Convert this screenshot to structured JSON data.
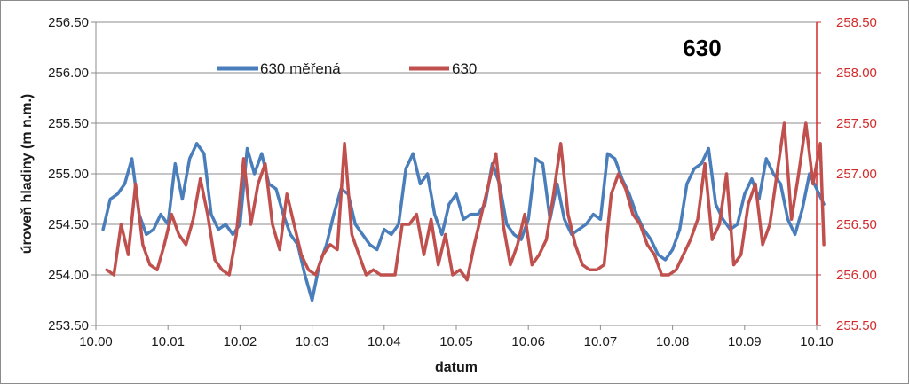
{
  "chart_data": {
    "type": "line",
    "title": "630",
    "xlabel": "datum",
    "ylabel": "úroveň hladiny (m n.m.)",
    "x_ticks": [
      "10.00",
      "10.01",
      "10.02",
      "10.03",
      "10.04",
      "10.05",
      "10.06",
      "10.07",
      "10.08",
      "10.09",
      "10.10"
    ],
    "xlim": [
      10.0,
      10.1
    ],
    "y_left": {
      "lim": [
        253.5,
        256.5
      ],
      "ticks": [
        "253.50",
        "254.00",
        "254.50",
        "255.00",
        "255.50",
        "256.00",
        "256.50"
      ]
    },
    "y_right": {
      "lim": [
        255.5,
        258.5
      ],
      "ticks": [
        "255.50",
        "256.00",
        "256.50",
        "257.00",
        "257.50",
        "258.00",
        "258.50"
      ],
      "color": "#d22b2b"
    },
    "grid": "horizontal",
    "legend_position": "top",
    "series": [
      {
        "name": "630 měřená",
        "axis": "left",
        "color": "#4a7ebb",
        "x": [
          10.001,
          10.002,
          10.003,
          10.004,
          10.005,
          10.006,
          10.007,
          10.008,
          10.009,
          10.01,
          10.011,
          10.012,
          10.013,
          10.014,
          10.015,
          10.016,
          10.017,
          10.018,
          10.019,
          10.02,
          10.021,
          10.022,
          10.023,
          10.024,
          10.025,
          10.026,
          10.027,
          10.028,
          10.029,
          10.03,
          10.031,
          10.032,
          10.033,
          10.034,
          10.035,
          10.036,
          10.037,
          10.038,
          10.039,
          10.04,
          10.041,
          10.042,
          10.043,
          10.044,
          10.045,
          10.046,
          10.047,
          10.048,
          10.049,
          10.05,
          10.051,
          10.052,
          10.053,
          10.054,
          10.055,
          10.056,
          10.057,
          10.058,
          10.059,
          10.06,
          10.061,
          10.062,
          10.063,
          10.064,
          10.065,
          10.066,
          10.067,
          10.068,
          10.069,
          10.07,
          10.071,
          10.072,
          10.073,
          10.074,
          10.075,
          10.076,
          10.077,
          10.078,
          10.079,
          10.08,
          10.081,
          10.082,
          10.083,
          10.084,
          10.085,
          10.086,
          10.087,
          10.088,
          10.089,
          10.09,
          10.091,
          10.092,
          10.093,
          10.094,
          10.095,
          10.096,
          10.097,
          10.098,
          10.099,
          10.1,
          10.101
        ],
        "values": [
          254.45,
          254.75,
          254.8,
          254.9,
          255.15,
          254.6,
          254.4,
          254.45,
          254.6,
          254.5,
          255.1,
          254.75,
          255.15,
          255.3,
          255.2,
          254.6,
          254.45,
          254.5,
          254.4,
          254.5,
          255.25,
          255.0,
          255.2,
          254.9,
          254.85,
          254.6,
          254.4,
          254.3,
          254.0,
          253.75,
          254.1,
          254.3,
          254.6,
          254.85,
          254.8,
          254.5,
          254.4,
          254.3,
          254.25,
          254.45,
          254.4,
          254.5,
          255.05,
          255.2,
          254.9,
          255.0,
          254.6,
          254.4,
          254.7,
          254.8,
          254.55,
          254.6,
          254.6,
          254.7,
          255.1,
          254.9,
          254.5,
          254.4,
          254.35,
          254.55,
          255.15,
          255.1,
          254.55,
          254.9,
          254.55,
          254.4,
          254.45,
          254.5,
          254.6,
          254.55,
          255.2,
          255.15,
          254.95,
          254.8,
          254.6,
          254.45,
          254.35,
          254.2,
          254.15,
          254.25,
          254.45,
          254.9,
          255.05,
          255.1,
          255.25,
          254.7,
          254.55,
          254.45,
          254.5,
          254.8,
          254.95,
          254.75,
          255.15,
          255.0,
          254.9,
          254.55,
          254.4,
          254.65,
          255.0,
          254.85,
          254.7
        ]
      },
      {
        "name": "630",
        "axis": "right",
        "color": "#c0504d",
        "x": [
          10.0015,
          10.0025,
          10.0035,
          10.0045,
          10.0055,
          10.0065,
          10.0075,
          10.0085,
          10.0095,
          10.0105,
          10.0115,
          10.0125,
          10.0135,
          10.0145,
          10.0155,
          10.0165,
          10.0175,
          10.0185,
          10.0195,
          10.0205,
          10.0215,
          10.0225,
          10.0235,
          10.0245,
          10.0255,
          10.0265,
          10.0275,
          10.0285,
          10.0295,
          10.0305,
          10.0315,
          10.0325,
          10.0335,
          10.0345,
          10.0355,
          10.0365,
          10.0375,
          10.0385,
          10.0395,
          10.0405,
          10.0415,
          10.0425,
          10.0435,
          10.0445,
          10.0455,
          10.0465,
          10.0475,
          10.0485,
          10.0495,
          10.0505,
          10.0515,
          10.0525,
          10.0535,
          10.0545,
          10.0555,
          10.0565,
          10.0575,
          10.0585,
          10.0595,
          10.0605,
          10.0615,
          10.0625,
          10.0635,
          10.0645,
          10.0655,
          10.0665,
          10.0675,
          10.0685,
          10.0695,
          10.0705,
          10.0715,
          10.0725,
          10.0735,
          10.0745,
          10.0755,
          10.0765,
          10.0775,
          10.0785,
          10.0795,
          10.0805,
          10.0815,
          10.0825,
          10.0835,
          10.0845,
          10.0855,
          10.0865,
          10.0875,
          10.0885,
          10.0895,
          10.0905,
          10.0915,
          10.0925,
          10.0935,
          10.0945,
          10.0955,
          10.0965,
          10.0975,
          10.0985,
          10.0995,
          10.1005,
          10.101
        ],
        "values": [
          256.05,
          256.0,
          256.5,
          256.2,
          256.9,
          256.3,
          256.1,
          256.05,
          256.3,
          256.6,
          256.4,
          256.3,
          256.55,
          256.95,
          256.6,
          256.15,
          256.05,
          256.0,
          256.4,
          257.15,
          256.5,
          256.9,
          257.1,
          256.5,
          256.25,
          256.8,
          256.5,
          256.2,
          256.05,
          256.0,
          256.2,
          256.3,
          256.25,
          257.3,
          256.4,
          256.2,
          256.0,
          256.05,
          256.0,
          256.0,
          256.0,
          256.5,
          256.5,
          256.6,
          256.2,
          256.55,
          256.1,
          256.4,
          256.0,
          256.05,
          255.95,
          256.3,
          256.6,
          256.9,
          257.2,
          256.5,
          256.1,
          256.3,
          256.6,
          256.1,
          256.2,
          256.35,
          256.8,
          257.3,
          256.6,
          256.3,
          256.1,
          256.05,
          256.05,
          256.1,
          256.8,
          257.0,
          256.85,
          256.6,
          256.5,
          256.3,
          256.2,
          256.0,
          256.0,
          256.05,
          256.2,
          256.35,
          256.55,
          257.1,
          256.35,
          256.5,
          257.0,
          256.1,
          256.2,
          256.7,
          256.9,
          256.3,
          256.5,
          257.0,
          257.5,
          256.55,
          257.0,
          257.5,
          256.9,
          257.3,
          256.3
        ]
      }
    ]
  }
}
